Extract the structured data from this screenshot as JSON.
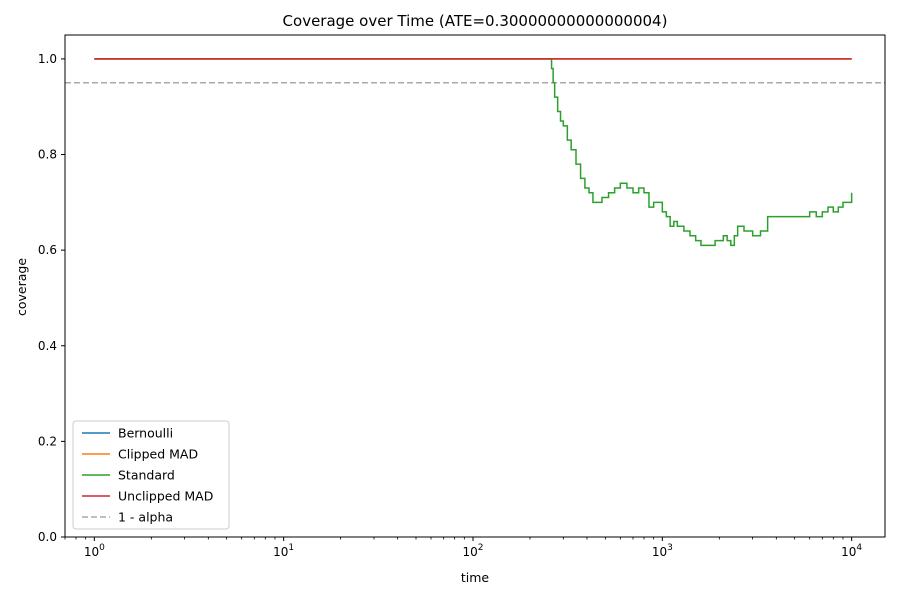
{
  "chart_data": {
    "type": "line",
    "title": "Coverage over Time (ATE=0.30000000000000004)",
    "xlabel": "time",
    "ylabel": "coverage",
    "xscale": "log",
    "xlim": [
      0.7,
      15000
    ],
    "ylim": [
      0.0,
      1.05
    ],
    "xticks": [
      {
        "value": 1,
        "base": "10",
        "exp": "0"
      },
      {
        "value": 10,
        "base": "10",
        "exp": "1"
      },
      {
        "value": 100,
        "base": "10",
        "exp": "2"
      },
      {
        "value": 1000,
        "base": "10",
        "exp": "3"
      },
      {
        "value": 10000,
        "base": "10",
        "exp": "4"
      }
    ],
    "yticks": [
      "0.0",
      "0.2",
      "0.4",
      "0.6",
      "0.8",
      "1.0"
    ],
    "grid": false,
    "legend_position": "lower-left",
    "series": [
      {
        "name": "Bernoulli",
        "color": "#1f77b4",
        "style": "solid",
        "x": [
          1,
          10000
        ],
        "y": [
          1.0,
          1.0
        ]
      },
      {
        "name": "Clipped MAD",
        "color": "#ff7f0e",
        "style": "solid",
        "x": [
          1,
          10000
        ],
        "y": [
          1.0,
          1.0
        ]
      },
      {
        "name": "Standard",
        "color": "#2ca02c",
        "style": "solid",
        "x": [
          1,
          250,
          260,
          265,
          270,
          280,
          290,
          300,
          315,
          330,
          350,
          370,
          390,
          410,
          430,
          450,
          480,
          520,
          560,
          600,
          650,
          700,
          750,
          800,
          850,
          900,
          950,
          1000,
          1050,
          1100,
          1150,
          1200,
          1300,
          1400,
          1500,
          1600,
          1700,
          1800,
          1900,
          2000,
          2100,
          2200,
          2300,
          2400,
          2500,
          2700,
          3000,
          3300,
          3600,
          4000,
          4500,
          5000,
          5500,
          6000,
          6500,
          7000,
          7500,
          8000,
          8500,
          9000,
          9500,
          10000
        ],
        "y": [
          1.0,
          1.0,
          0.98,
          0.95,
          0.92,
          0.89,
          0.87,
          0.86,
          0.83,
          0.81,
          0.78,
          0.75,
          0.73,
          0.72,
          0.7,
          0.7,
          0.71,
          0.72,
          0.73,
          0.74,
          0.73,
          0.72,
          0.73,
          0.72,
          0.69,
          0.7,
          0.7,
          0.68,
          0.67,
          0.65,
          0.66,
          0.65,
          0.64,
          0.63,
          0.62,
          0.61,
          0.61,
          0.61,
          0.62,
          0.62,
          0.63,
          0.62,
          0.61,
          0.63,
          0.65,
          0.64,
          0.63,
          0.64,
          0.67,
          0.67,
          0.67,
          0.67,
          0.67,
          0.68,
          0.67,
          0.68,
          0.69,
          0.68,
          0.69,
          0.7,
          0.7,
          0.72
        ]
      },
      {
        "name": "Unclipped MAD",
        "color": "#d62728",
        "style": "solid",
        "x": [
          1,
          10000
        ],
        "y": [
          1.0,
          1.0
        ]
      }
    ],
    "reference_line": {
      "name": "1 - alpha",
      "color": "#aaaaaa",
      "style": "dashed",
      "y": 0.95
    }
  }
}
